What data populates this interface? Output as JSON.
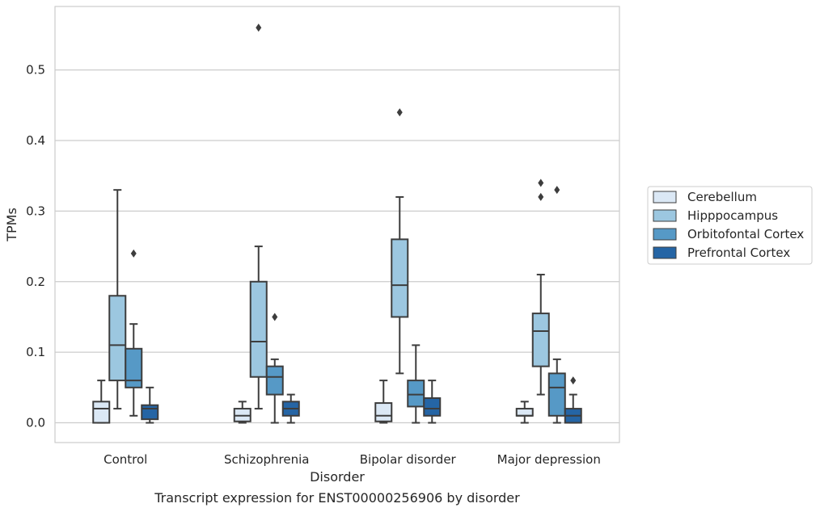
{
  "chart_data": {
    "type": "box",
    "caption": "Transcript expression for ENST00000256906 by disorder",
    "xlabel": "Disorder",
    "ylabel": "TPMs",
    "ylim": [
      -0.028,
      0.59
    ],
    "yticks": [
      "0.0",
      "0.1",
      "0.2",
      "0.3",
      "0.4",
      "0.5"
    ],
    "grid": "horizontal",
    "legend_position": "right",
    "categories": [
      "Control",
      "Schizophrenia",
      "Bipolar disorder",
      "Major depression"
    ],
    "series": [
      {
        "name": "Cerebellum",
        "color": "#dbe8f5",
        "boxes": [
          {
            "whislo": 0.0,
            "q1": 0.0,
            "med": 0.02,
            "q3": 0.03,
            "whishi": 0.06,
            "fliers": []
          },
          {
            "whislo": 0.0,
            "q1": 0.002,
            "med": 0.01,
            "q3": 0.02,
            "whishi": 0.03,
            "fliers": []
          },
          {
            "whislo": 0.0,
            "q1": 0.002,
            "med": 0.01,
            "q3": 0.028,
            "whishi": 0.06,
            "fliers": []
          },
          {
            "whislo": 0.0,
            "q1": 0.01,
            "med": 0.01,
            "q3": 0.02,
            "whishi": 0.03,
            "fliers": []
          }
        ]
      },
      {
        "name": "Hipppocampus",
        "color": "#9cc7e0",
        "boxes": [
          {
            "whislo": 0.02,
            "q1": 0.06,
            "med": 0.11,
            "q3": 0.18,
            "whishi": 0.33,
            "fliers": []
          },
          {
            "whislo": 0.02,
            "q1": 0.065,
            "med": 0.115,
            "q3": 0.2,
            "whishi": 0.25,
            "fliers": [
              0.56
            ]
          },
          {
            "whislo": 0.07,
            "q1": 0.15,
            "med": 0.195,
            "q3": 0.26,
            "whishi": 0.32,
            "fliers": [
              0.44
            ]
          },
          {
            "whislo": 0.04,
            "q1": 0.08,
            "med": 0.13,
            "q3": 0.155,
            "whishi": 0.21,
            "fliers": [
              0.32,
              0.34
            ]
          }
        ]
      },
      {
        "name": "Orbitofontal Cortex",
        "color": "#5699c6",
        "boxes": [
          {
            "whislo": 0.01,
            "q1": 0.05,
            "med": 0.06,
            "q3": 0.105,
            "whishi": 0.14,
            "fliers": [
              0.24
            ]
          },
          {
            "whislo": 0.0,
            "q1": 0.04,
            "med": 0.065,
            "q3": 0.08,
            "whishi": 0.09,
            "fliers": [
              0.15
            ]
          },
          {
            "whislo": 0.0,
            "q1": 0.023,
            "med": 0.04,
            "q3": 0.06,
            "whishi": 0.11,
            "fliers": []
          },
          {
            "whislo": 0.0,
            "q1": 0.01,
            "med": 0.05,
            "q3": 0.07,
            "whishi": 0.09,
            "fliers": [
              0.33
            ]
          }
        ]
      },
      {
        "name": "Prefrontal Cortex",
        "color": "#2565a5",
        "boxes": [
          {
            "whislo": 0.0,
            "q1": 0.005,
            "med": 0.02,
            "q3": 0.025,
            "whishi": 0.05,
            "fliers": []
          },
          {
            "whislo": 0.0,
            "q1": 0.01,
            "med": 0.02,
            "q3": 0.03,
            "whishi": 0.04,
            "fliers": []
          },
          {
            "whislo": 0.0,
            "q1": 0.01,
            "med": 0.02,
            "q3": 0.035,
            "whishi": 0.06,
            "fliers": []
          },
          {
            "whislo": 0.0,
            "q1": 0.0,
            "med": 0.01,
            "q3": 0.02,
            "whishi": 0.04,
            "fliers": [
              0.06
            ]
          }
        ]
      }
    ]
  }
}
